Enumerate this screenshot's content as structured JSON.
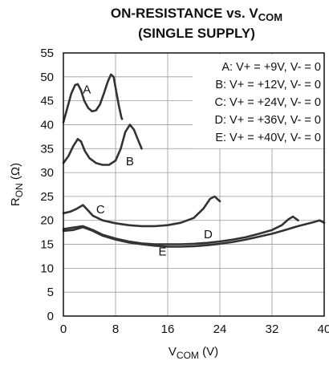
{
  "chart_data": {
    "type": "line",
    "title": {
      "line1": {
        "main": "ON-RESISTANCE vs. V",
        "sub": "COM"
      },
      "line2": "(SINGLE SUPPLY)"
    },
    "xlabel": {
      "main": "V",
      "sub": "COM",
      "unit": " (V)"
    },
    "ylabel": {
      "main": "R",
      "sub": "ON",
      "unit": " (Ω)"
    },
    "xlim": [
      0,
      40
    ],
    "ylim": [
      0,
      55
    ],
    "xticks": [
      0,
      8,
      16,
      24,
      32,
      40
    ],
    "yticks": [
      0,
      5,
      10,
      15,
      20,
      25,
      30,
      35,
      40,
      45,
      50,
      55
    ],
    "grid": true,
    "legend_position": "top-right",
    "series": [
      {
        "name": "A",
        "legend": "A: V+ = +9V, V- = 0",
        "label_point": [
          3.6,
          46.5
        ],
        "x": [
          0,
          0.6,
          1.2,
          1.8,
          2.2,
          2.7,
          3.2,
          3.8,
          4.4,
          5.0,
          5.6,
          6.2,
          6.8,
          7.3,
          7.7,
          8.1,
          8.5,
          8.9,
          9.0
        ],
        "y": [
          40.5,
          43.5,
          46.5,
          48.3,
          48.5,
          47.2,
          45.0,
          43.5,
          42.8,
          43.0,
          44.2,
          46.5,
          49.0,
          50.5,
          50.0,
          47.0,
          44.0,
          41.5,
          41.2
        ]
      },
      {
        "name": "B",
        "legend": "B: V+ = +12V, V- = 0",
        "label_point": [
          10.2,
          31.5
        ],
        "x": [
          0,
          0.8,
          1.5,
          2.2,
          2.7,
          3.3,
          4.0,
          5.0,
          6.0,
          7.0,
          8.0,
          8.8,
          9.5,
          10.2,
          10.8,
          11.4,
          12.0
        ],
        "y": [
          32.0,
          33.5,
          35.5,
          37.0,
          36.5,
          34.5,
          33.0,
          32.0,
          31.6,
          31.6,
          32.5,
          35.0,
          38.5,
          40.0,
          39.0,
          37.0,
          35.0
        ]
      },
      {
        "name": "C",
        "legend": "C: V+ = +24V, V- = 0",
        "label_point": [
          5.7,
          21.5
        ],
        "x": [
          0,
          1.0,
          2.0,
          3.0,
          3.5,
          4.5,
          6.0,
          8.0,
          10.0,
          12.0,
          14.0,
          16.0,
          18.0,
          20.0,
          21.5,
          22.5,
          23.2,
          24.0
        ],
        "y": [
          21.5,
          21.8,
          22.4,
          23.2,
          22.5,
          21.0,
          20.0,
          19.4,
          19.0,
          18.8,
          18.8,
          19.0,
          19.5,
          20.5,
          22.5,
          24.5,
          25.0,
          24.0
        ]
      },
      {
        "name": "D",
        "legend": "D: V+ = +36V, V- = 0",
        "label_point": [
          22.2,
          16.3
        ],
        "x": [
          0,
          1.5,
          3.0,
          4.5,
          6.0,
          8.0,
          10.0,
          12.0,
          14.0,
          16.0,
          18.0,
          20.0,
          22.0,
          24.0,
          26.0,
          28.0,
          30.0,
          32.0,
          33.5,
          34.5,
          35.2,
          36.0
        ],
        "y": [
          18.2,
          18.5,
          18.8,
          18.0,
          17.0,
          16.2,
          15.6,
          15.2,
          15.0,
          15.0,
          15.0,
          15.1,
          15.3,
          15.6,
          16.0,
          16.5,
          17.2,
          18.0,
          19.0,
          20.2,
          20.8,
          20.0
        ]
      },
      {
        "name": "E",
        "legend": "E: V+ = +40V, V- = 0",
        "label_point": [
          15.2,
          12.7
        ],
        "x": [
          0,
          1.5,
          3.0,
          4.5,
          6.0,
          8.0,
          10.0,
          12.0,
          14.0,
          16.0,
          18.0,
          20.0,
          22.0,
          24.0,
          26.0,
          28.0,
          30.0,
          32.0,
          34.0,
          36.0,
          38.0,
          39.3,
          40.0
        ],
        "y": [
          17.8,
          18.0,
          18.6,
          17.8,
          16.8,
          16.0,
          15.4,
          15.0,
          14.7,
          14.5,
          14.5,
          14.6,
          14.8,
          15.1,
          15.5,
          16.0,
          16.6,
          17.2,
          18.0,
          18.8,
          19.5,
          20.0,
          19.5
        ]
      }
    ]
  }
}
